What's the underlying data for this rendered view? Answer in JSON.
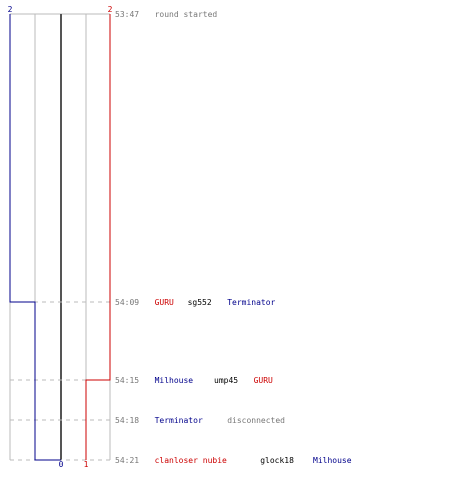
{
  "colors": {
    "team_blue": "#00008b",
    "team_red": "#cc0000",
    "neutral_text": "#000000",
    "muted_text": "#777777",
    "grid": "#bbbbbb",
    "center_line": "#555555",
    "dash": "#bbbbbb"
  },
  "top_counts": {
    "blue": "2",
    "red": "2"
  },
  "bottom_counts": {
    "blue": "0",
    "red": "1"
  },
  "events": [
    {
      "time": "53:47",
      "segments": [
        {
          "text": "round started",
          "style": "muted"
        }
      ]
    },
    {
      "time": "54:09",
      "segments": [
        {
          "text": "GURU",
          "style": "red"
        },
        {
          "text": "sg552",
          "style": "neutral"
        },
        {
          "text": "Terminator",
          "style": "blue"
        }
      ]
    },
    {
      "time": "54:15",
      "segments": [
        {
          "text": "Milhouse",
          "style": "blue"
        },
        {
          "text": "ump45",
          "style": "neutral"
        },
        {
          "text": "GURU",
          "style": "red"
        }
      ]
    },
    {
      "time": "54:18",
      "segments": [
        {
          "text": "Terminator",
          "style": "blue"
        },
        {
          "text": "disconnected",
          "style": "muted"
        }
      ]
    },
    {
      "time": "54:21",
      "segments": [
        {
          "text": "clanloser nubie",
          "style": "red"
        },
        {
          "text": "glock18",
          "style": "neutral"
        },
        {
          "text": "Milhouse",
          "style": "blue"
        }
      ]
    }
  ]
}
